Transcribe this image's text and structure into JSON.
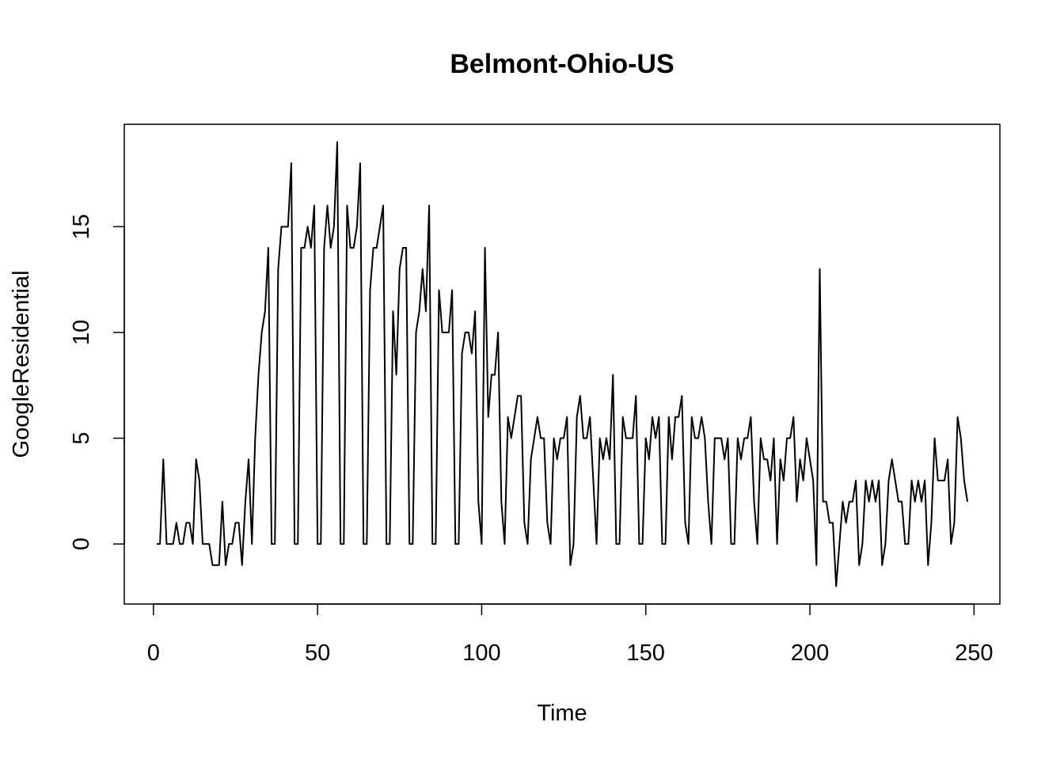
{
  "chart_data": {
    "type": "line",
    "title": "Belmont-Ohio-US",
    "x_label": "Time",
    "y_label": "GoogleResidential",
    "color": "#000000",
    "x": [
      1,
      2,
      3,
      4,
      5,
      6,
      7,
      8,
      9,
      10,
      11,
      12,
      13,
      14,
      15,
      16,
      17,
      18,
      19,
      20,
      21,
      22,
      23,
      24,
      25,
      26,
      27,
      28,
      29,
      30,
      31,
      32,
      33,
      34,
      35,
      36,
      37,
      38,
      39,
      40,
      41,
      42,
      43,
      44,
      45,
      46,
      47,
      48,
      49,
      50,
      51,
      52,
      53,
      54,
      55,
      56,
      57,
      58,
      59,
      60,
      61,
      62,
      63,
      64,
      65,
      66,
      67,
      68,
      69,
      70,
      71,
      72,
      73,
      74,
      75,
      76,
      77,
      78,
      79,
      80,
      81,
      82,
      83,
      84,
      85,
      86,
      87,
      88,
      89,
      90,
      91,
      92,
      93,
      94,
      95,
      96,
      97,
      98,
      99,
      100,
      101,
      102,
      103,
      104,
      105,
      106,
      107,
      108,
      109,
      110,
      111,
      112,
      113,
      114,
      115,
      116,
      117,
      118,
      119,
      120,
      121,
      122,
      123,
      124,
      125,
      126,
      127,
      128,
      129,
      130,
      131,
      132,
      133,
      134,
      135,
      136,
      137,
      138,
      139,
      140,
      141,
      142,
      143,
      144,
      145,
      146,
      147,
      148,
      149,
      150,
      151,
      152,
      153,
      154,
      155,
      156,
      157,
      158,
      159,
      160,
      161,
      162,
      163,
      164,
      165,
      166,
      167,
      168,
      169,
      170,
      171,
      172,
      173,
      174,
      175,
      176,
      177,
      178,
      179,
      180,
      181,
      182,
      183,
      184,
      185,
      186,
      187,
      188,
      189,
      190,
      191,
      192,
      193,
      194,
      195,
      196,
      197,
      198,
      199,
      200,
      201,
      202,
      203,
      204,
      205,
      206,
      207,
      208,
      209,
      210,
      211,
      212,
      213,
      214,
      215,
      216,
      217,
      218,
      219,
      220,
      221,
      222,
      223,
      224,
      225,
      226,
      227,
      228,
      229,
      230,
      231,
      232,
      233,
      234,
      235,
      236,
      237,
      238,
      239,
      240,
      241,
      242,
      243,
      244,
      245,
      246,
      247,
      248
    ],
    "values": [
      0,
      0,
      4,
      0,
      0,
      0,
      1,
      0,
      0,
      1,
      1,
      0,
      4,
      3,
      0,
      0,
      0,
      -1,
      -1,
      -1,
      2,
      -1,
      0,
      0,
      1,
      1,
      -1,
      2,
      4,
      0,
      5,
      8,
      10,
      11,
      14,
      0,
      0,
      13,
      15,
      15,
      15,
      18,
      0,
      0,
      14,
      14,
      15,
      14,
      16,
      0,
      0,
      14,
      16,
      14,
      15,
      19,
      0,
      0,
      16,
      14,
      14,
      15,
      18,
      0,
      0,
      12,
      14,
      14,
      15,
      16,
      0,
      0,
      11,
      8,
      13,
      14,
      14,
      0,
      0,
      10,
      11,
      13,
      11,
      16,
      0,
      0,
      12,
      10,
      10,
      10,
      12,
      0,
      0,
      9,
      10,
      10,
      9,
      11,
      2,
      0,
      14,
      6,
      8,
      8,
      10,
      2,
      0,
      6,
      5,
      6,
      7,
      7,
      1,
      0,
      4,
      5,
      6,
      5,
      5,
      1,
      0,
      5,
      4,
      5,
      5,
      6,
      -1,
      0,
      6,
      7,
      5,
      5,
      6,
      3,
      0,
      5,
      4,
      5,
      4,
      8,
      0,
      0,
      6,
      5,
      5,
      5,
      7,
      0,
      0,
      5,
      4,
      6,
      5,
      6,
      0,
      0,
      6,
      4,
      6,
      6,
      7,
      1,
      0,
      6,
      5,
      5,
      6,
      5,
      2,
      0,
      5,
      5,
      5,
      4,
      5,
      0,
      0,
      5,
      4,
      5,
      5,
      6,
      2,
      0,
      5,
      4,
      4,
      3,
      5,
      0,
      4,
      3,
      5,
      5,
      6,
      2,
      4,
      3,
      5,
      4,
      3,
      -1,
      13,
      2,
      2,
      1,
      1,
      -2,
      0,
      2,
      1,
      2,
      2,
      3,
      -1,
      0,
      3,
      2,
      3,
      2,
      3,
      -1,
      0,
      3,
      4,
      3,
      2,
      2,
      0,
      0,
      3,
      2,
      3,
      2,
      3,
      -1,
      1,
      5,
      3,
      3,
      3,
      4,
      0,
      1,
      6,
      5,
      3,
      2
    ],
    "xlim": [
      -8.88,
      257.88
    ],
    "ylim": [
      -2.84,
      19.84
    ],
    "xticks": [
      0,
      50,
      100,
      150,
      200,
      250
    ],
    "yticks": [
      0,
      5,
      10,
      15
    ]
  }
}
